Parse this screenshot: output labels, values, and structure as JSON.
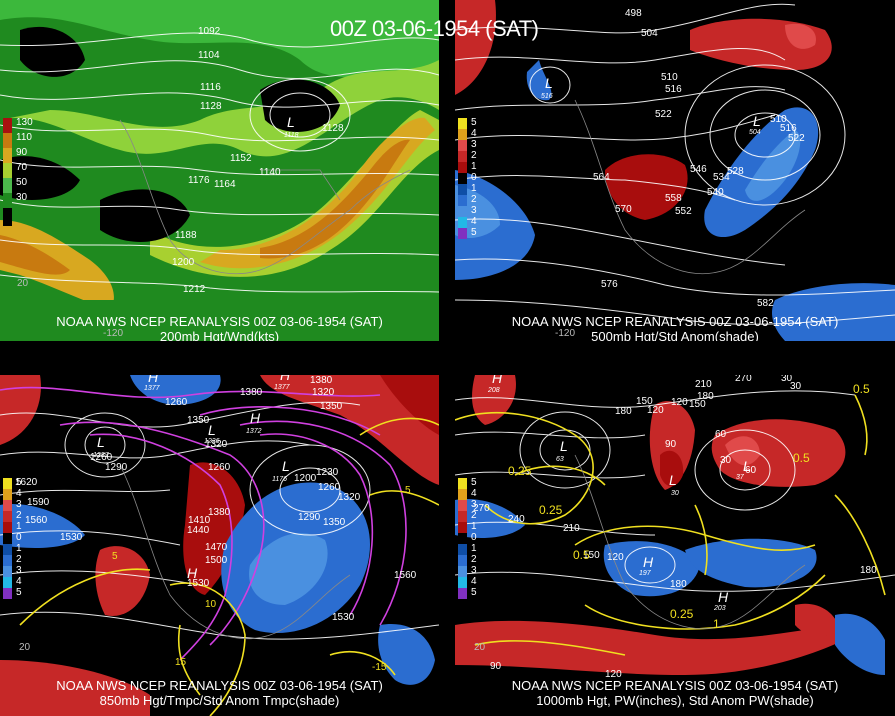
{
  "main_title": "00Z 03-06-1954 (SAT)",
  "colors": {
    "background": "#000000",
    "land": "#000000",
    "anom_pos": [
      "#7a0000",
      "#a80d0d",
      "#c62828",
      "#e04a4a"
    ],
    "anom_neg": [
      "#0f4ea6",
      "#2b6dd0",
      "#4a90e0",
      "#22b8e6"
    ],
    "wind": [
      "#0f5a0f",
      "#1f8a1f",
      "#3cb83c",
      "#8fd23a",
      "#d8c81e",
      "#e0a21c",
      "#b8780e",
      "#8a0000"
    ],
    "pw_contour": "#f0e020",
    "temp_contour": "#d040e0",
    "height_contour": "#ffffff"
  },
  "panels": [
    {
      "id": "200mb",
      "caption_line1": "NOAA NWS NCEP REANALYSIS 00Z 03-06-1954 (SAT)",
      "caption_line2": "200mb Hgt/Wnd(kts)",
      "legend": [
        "130",
        "110",
        "90",
        "70",
        "50",
        "30"
      ],
      "legend_colors": [
        "#a81010",
        "#c87a10",
        "#d8a820",
        "#a8d030",
        "#4cb84c",
        "#1f8a1f"
      ],
      "height_labels": [
        "1092",
        "1104",
        "1116",
        "1128",
        "1128",
        "1152",
        "1140",
        "1176",
        "1164",
        "1188",
        "1200",
        "1212"
      ],
      "lows": [
        {
          "letter": "L",
          "value": "1118"
        }
      ],
      "longitude_labels": [
        "-120"
      ],
      "latitude_labels": [
        "20"
      ]
    },
    {
      "id": "500mb",
      "caption_line1": "NOAA NWS NCEP REANALYSIS 00Z 03-06-1954 (SAT)",
      "caption_line2": "500mb Hgt/Std Anom(shade)",
      "legend": [
        "5",
        "4",
        "3",
        "2",
        "1",
        "0",
        "1",
        "2",
        "3",
        "4",
        "5"
      ],
      "height_labels": [
        "498",
        "504",
        "510",
        "516",
        "522",
        "564",
        "570",
        "546",
        "540",
        "558",
        "552",
        "534",
        "528",
        "510",
        "516",
        "522",
        "576",
        "582"
      ],
      "lows": [
        {
          "letter": "L",
          "value": "516"
        },
        {
          "letter": "L",
          "value": "504"
        }
      ],
      "longitude_labels": [
        "-120"
      ]
    },
    {
      "id": "850mb",
      "caption_line1": "NOAA NWS NCEP REANALYSIS 00Z 03-06-1954 (SAT)",
      "caption_line2": "850mb Hgt/Tmpc/Std Anom Tmpc(shade)",
      "legend": [
        "5",
        "4",
        "3",
        "2",
        "1",
        "0",
        "1",
        "2",
        "3",
        "4",
        "5"
      ],
      "height_labels": [
        "1620",
        "1590",
        "1560",
        "1530",
        "1260",
        "1290",
        "1350",
        "1380",
        "1320",
        "1350",
        "1230",
        "1200",
        "1260",
        "1410",
        "1380",
        "1440",
        "1470",
        "1500",
        "1530",
        "1290",
        "1350",
        "1320",
        "1560",
        "1530",
        "1530",
        "1380",
        "1380",
        "1350",
        "1320",
        "1260"
      ],
      "temp_labels": [
        "5",
        "10",
        "15",
        "5",
        "-15"
      ],
      "lows": [
        {
          "letter": "L",
          "value": "1287"
        },
        {
          "letter": "L",
          "value": "1226"
        },
        {
          "letter": "L",
          "value": "1176"
        }
      ],
      "highs": [
        {
          "letter": "H",
          "value": "1377"
        },
        {
          "letter": "H",
          "value": "1372"
        },
        {
          "letter": "H",
          "value": "1377"
        },
        {
          "letter": "H",
          "value": "1530"
        }
      ],
      "latitude_labels": [
        "20"
      ]
    },
    {
      "id": "1000mb",
      "caption_line1": "NOAA NWS NCEP REANALYSIS 00Z 03-06-1954 (SAT)",
      "caption_line2": "1000mb Hgt, PW(inches), Std Anom PW(shade)",
      "legend": [
        "5",
        "4",
        "3",
        "2",
        "1",
        "0",
        "1",
        "2",
        "3",
        "4",
        "5"
      ],
      "height_labels": [
        "270",
        "30",
        "30",
        "210",
        "180",
        "150",
        "120",
        "180",
        "150",
        "120",
        "90",
        "60",
        "30",
        "60",
        "240",
        "270",
        "210",
        "150",
        "180",
        "120",
        "180",
        "90",
        "120",
        "0.5",
        "0.25",
        "0.25",
        "0.5",
        "0.25",
        "1",
        "0.5"
      ],
      "lows": [
        {
          "letter": "L",
          "value": "63"
        },
        {
          "letter": "L",
          "value": "30"
        },
        {
          "letter": "L",
          "value": "37"
        }
      ],
      "highs": [
        {
          "letter": "H",
          "value": "208"
        },
        {
          "letter": "H",
          "value": "197"
        },
        {
          "letter": "H",
          "value": "203"
        }
      ],
      "latitude_labels": [
        "20"
      ]
    }
  ]
}
